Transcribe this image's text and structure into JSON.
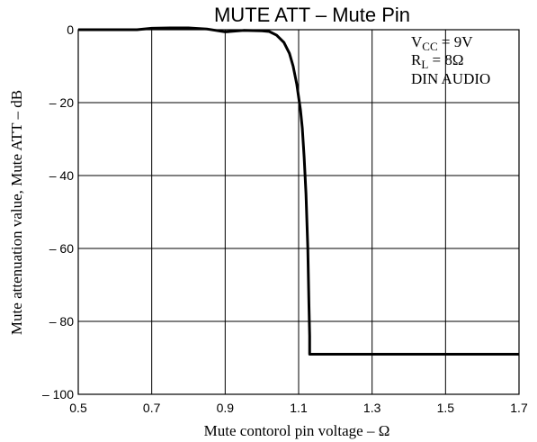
{
  "chart_data": {
    "type": "line",
    "title": "MUTE ATT  –  Mute Pin",
    "xlabel": "Mute contorol pin voltage  –  Ω",
    "ylabel": "Mute attenuation value, Mute ATT  –  dB",
    "xlim": [
      0.5,
      1.7
    ],
    "ylim": [
      -100,
      0
    ],
    "xticks": [
      0.5,
      0.7,
      0.9,
      1.1,
      1.3,
      1.5,
      1.7
    ],
    "xtick_labels": [
      "0.5",
      "0.7",
      "0.9",
      "1.1",
      "1.3",
      "1.5",
      "1.7"
    ],
    "yticks": [
      0,
      -20,
      -40,
      -60,
      -80,
      -100
    ],
    "ytick_labels": [
      "0",
      "– 20",
      "– 40",
      "– 60",
      "– 80",
      "– 100"
    ],
    "grid": true,
    "annotations": {
      "vcc_main": "V",
      "vcc_sub": "CC",
      "vcc_rest": " = 9V",
      "rl_main": "R",
      "rl_sub": "L",
      "rl_rest": " = 8Ω",
      "source": "DIN AUDIO"
    },
    "series": [
      {
        "x": [
          0.5,
          0.6,
          0.66,
          0.7,
          0.75,
          0.8,
          0.85,
          0.9,
          0.95,
          1.0,
          1.02,
          1.04,
          1.06,
          1.075,
          1.085,
          1.095,
          1.105,
          1.11,
          1.115,
          1.12,
          1.125,
          1.128,
          1.13,
          1.13,
          1.7
        ],
        "y": [
          0,
          0,
          0,
          0.4,
          0.5,
          0.5,
          0.2,
          -0.6,
          -0.2,
          -0.3,
          -0.5,
          -1.5,
          -3.5,
          -6.5,
          -10,
          -15,
          -22,
          -27,
          -35,
          -45,
          -60,
          -75,
          -84,
          -89,
          -89
        ]
      }
    ]
  }
}
